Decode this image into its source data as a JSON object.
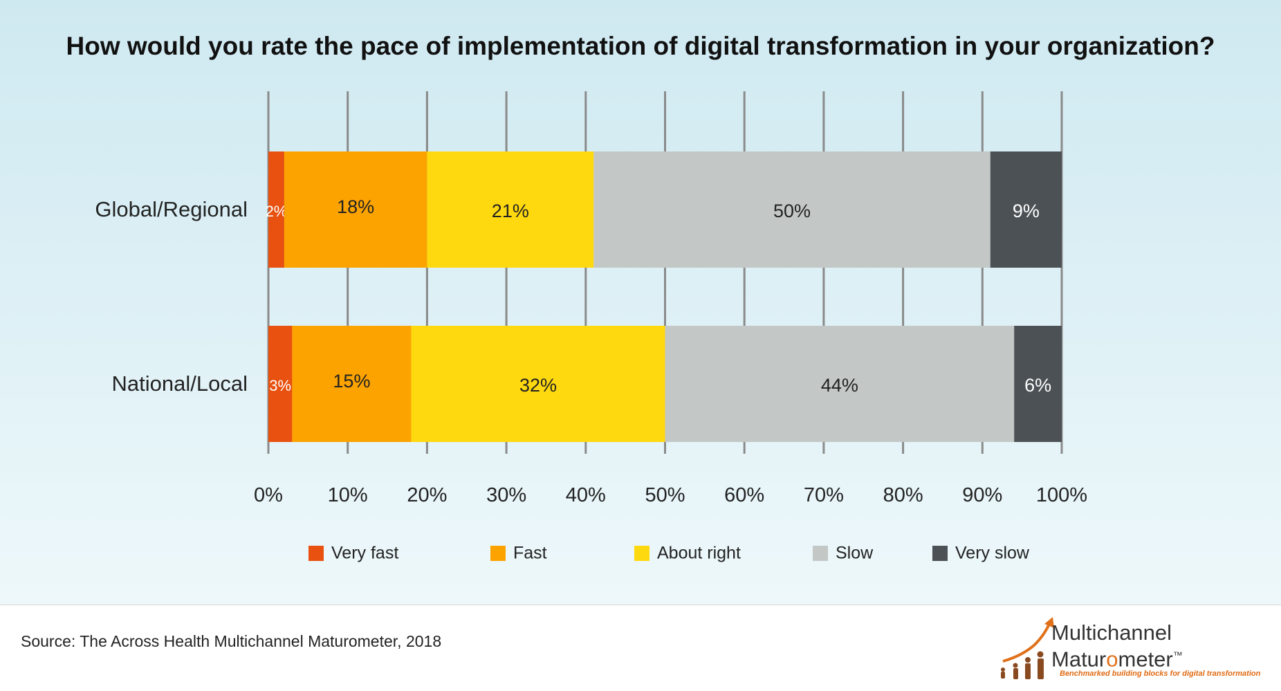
{
  "chart_data": {
    "type": "bar",
    "orientation": "horizontal",
    "stacked": true,
    "title": "How would you rate the pace of implementation of digital transformation in your organization?",
    "categories": [
      "Global/Regional",
      "National/Local"
    ],
    "series": [
      {
        "name": "Very fast",
        "values": [
          2,
          3
        ],
        "labels": [
          "2%",
          "3%"
        ],
        "color": "#e8510f"
      },
      {
        "name": "Fast",
        "values": [
          18,
          15
        ],
        "labels": [
          "18%",
          "15%"
        ],
        "color": "#fca300"
      },
      {
        "name": "About right",
        "values": [
          21,
          32
        ],
        "labels": [
          "21%",
          "32%"
        ],
        "color": "#ffd90f"
      },
      {
        "name": "Slow",
        "values": [
          50,
          44
        ],
        "labels": [
          "50%",
          "44%"
        ],
        "color": "#c3c8c6"
      },
      {
        "name": "Very slow",
        "values": [
          9,
          6
        ],
        "labels": [
          "9%",
          "6%"
        ],
        "color": "#4c5155"
      }
    ],
    "xlim": [
      0,
      100
    ],
    "xticks": [
      "0%",
      "10%",
      "20%",
      "30%",
      "40%",
      "50%",
      "60%",
      "70%",
      "80%",
      "90%",
      "100%"
    ],
    "grid": true,
    "legend_position": "bottom"
  },
  "source_text": "Source: The Across Health Multichannel Maturometer, 2018",
  "logo": {
    "line1": "Multichannel",
    "line2_a": "Matur",
    "line2_b": "o",
    "line2_c": "meter",
    "trademark": "™",
    "tagline": "Benchmarked building blocks for digital transformation"
  }
}
